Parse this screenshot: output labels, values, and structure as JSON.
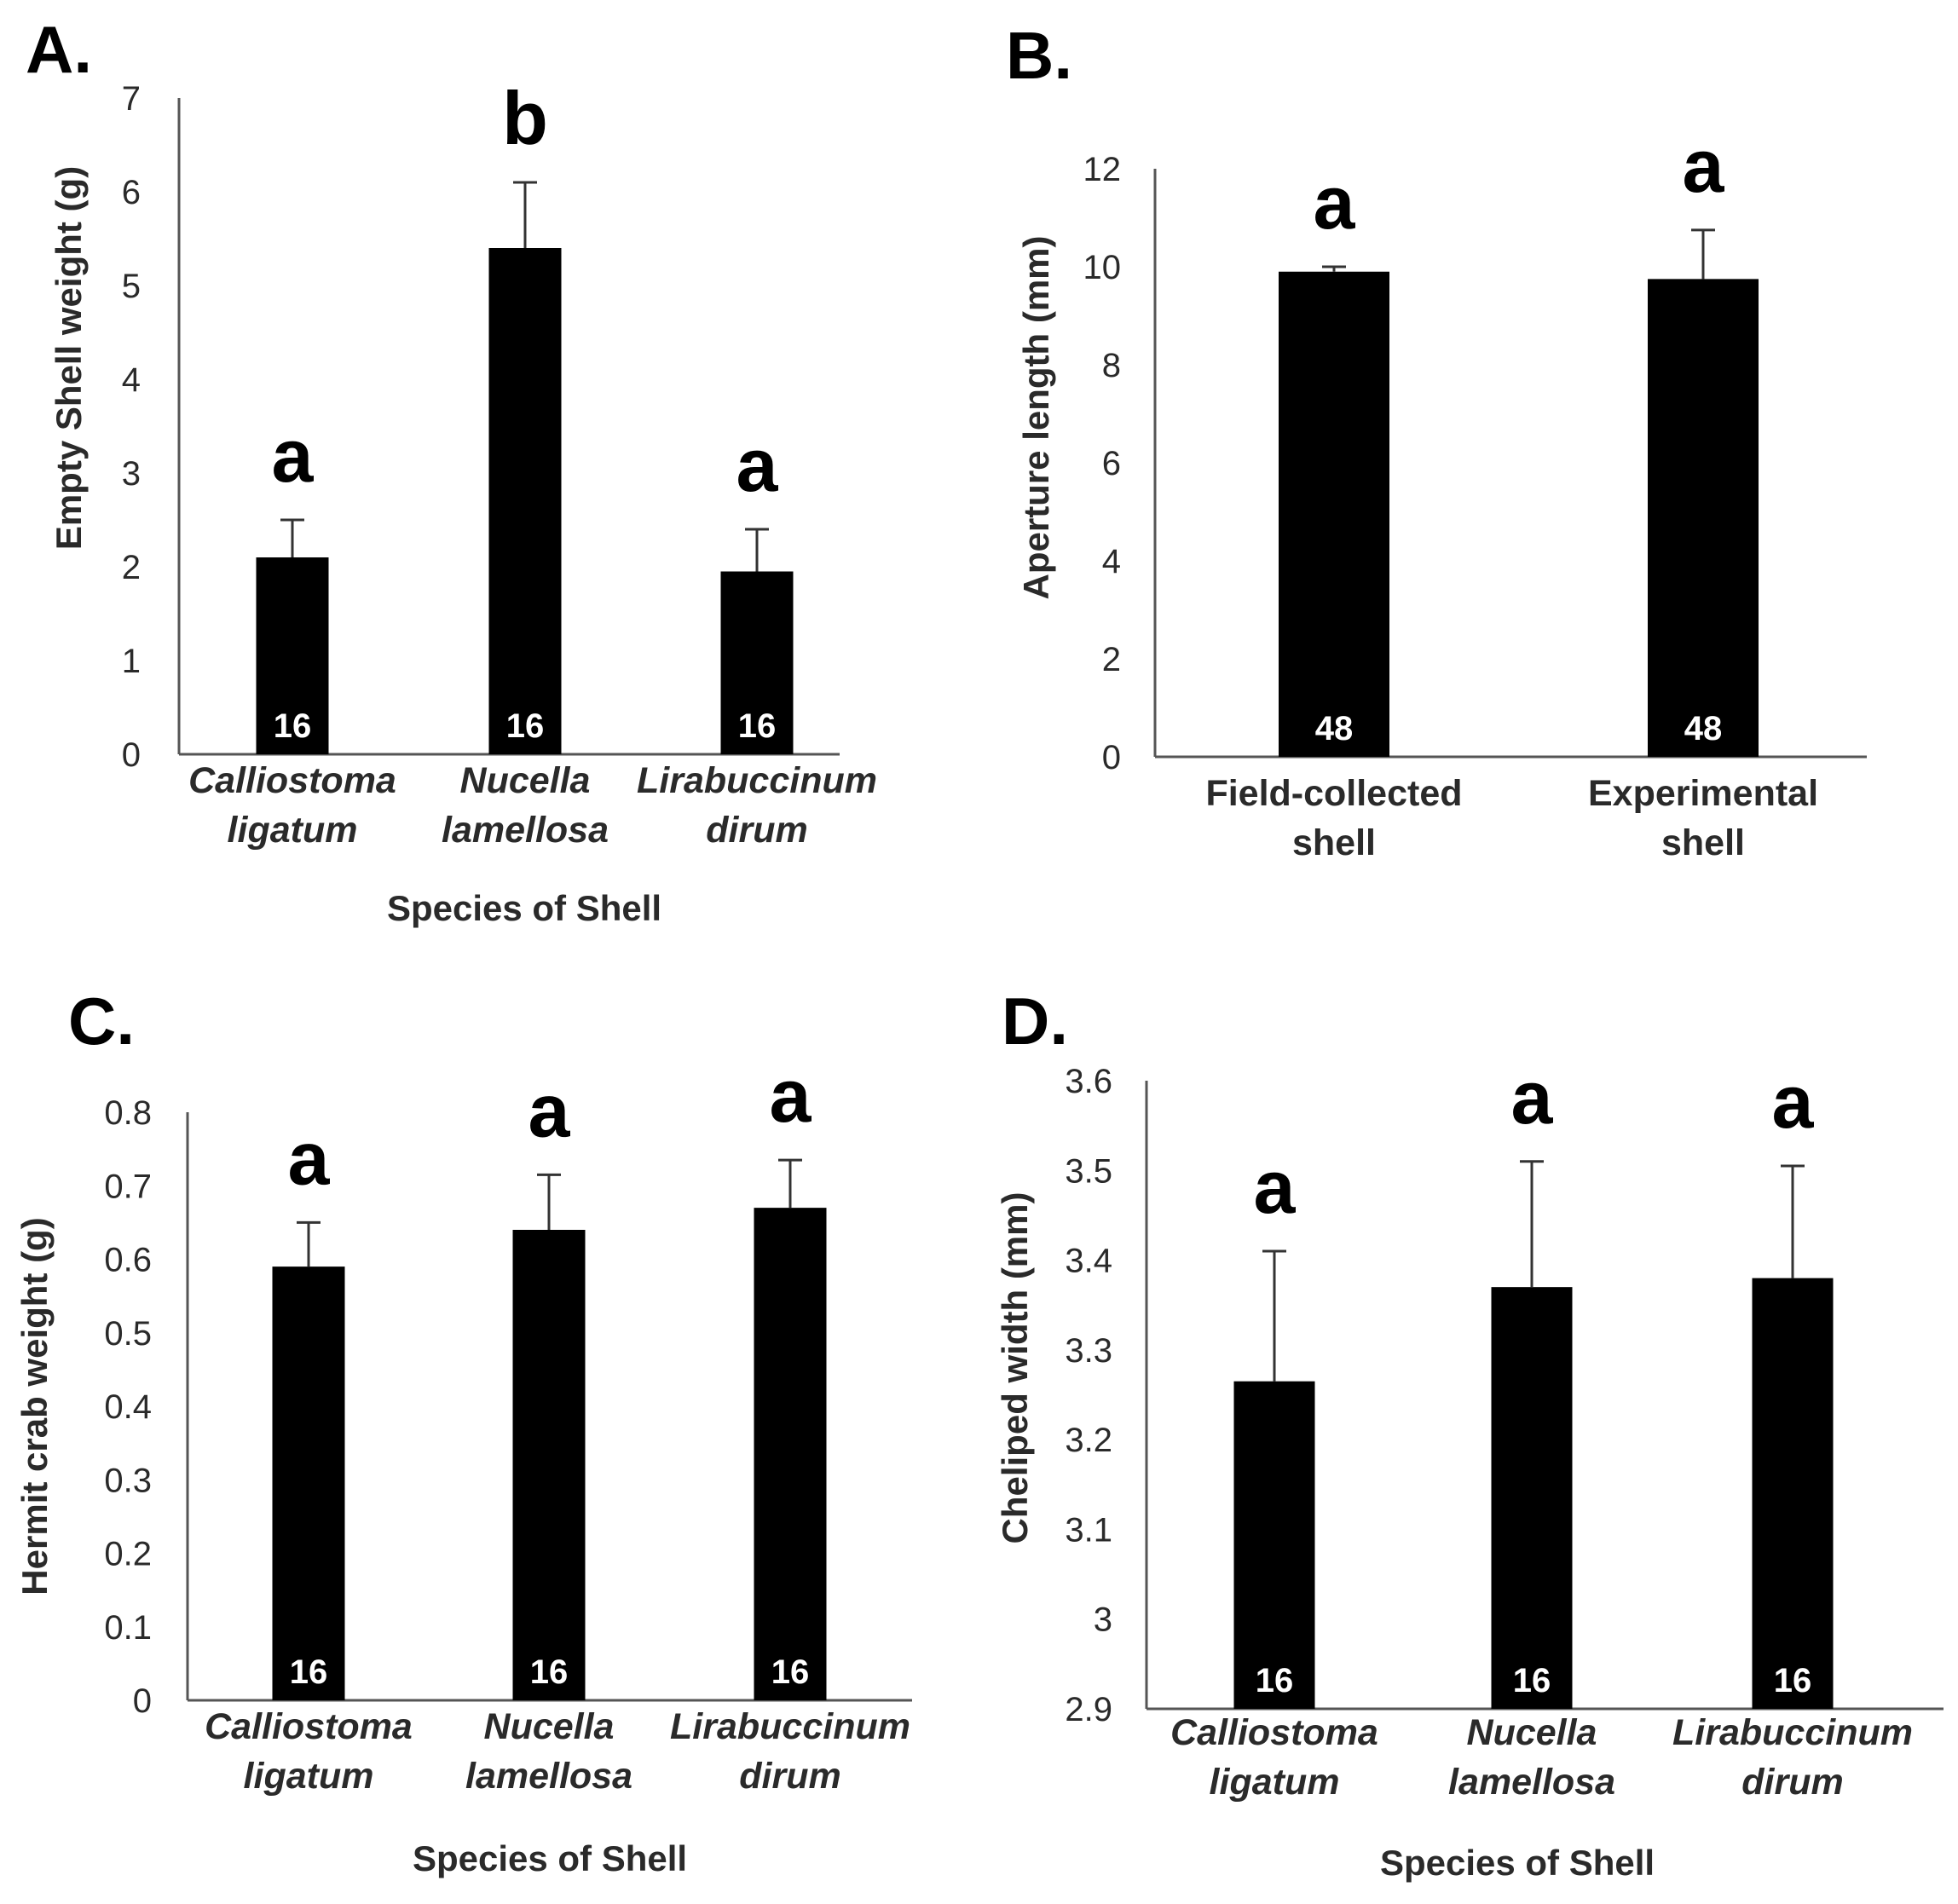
{
  "chart_data": [
    {
      "panel": "A.",
      "type": "bar",
      "categories": [
        [
          "Calliostoma",
          "ligatum"
        ],
        [
          "Nucella",
          "lamellosa"
        ],
        [
          "Lirabuccinum",
          "dirum"
        ]
      ],
      "category_italic": true,
      "values": [
        2.1,
        5.4,
        1.95
      ],
      "errors": [
        0.4,
        0.7,
        0.45
      ],
      "sig_letters": [
        "a",
        "b",
        "a"
      ],
      "n_labels": [
        "16",
        "16",
        "16"
      ],
      "ylabel": "Empty Shell weight  (g)",
      "xlabel": "Species of Shell",
      "ylim": [
        0,
        7
      ],
      "yticks": [
        "0",
        "1",
        "2",
        "3",
        "4",
        "5",
        "6",
        "7"
      ],
      "ytick_values": [
        0,
        1,
        2,
        3,
        4,
        5,
        6,
        7
      ]
    },
    {
      "panel": "B.",
      "type": "bar",
      "categories": [
        [
          "Field-collected",
          "shell"
        ],
        [
          "Experimental",
          "shell"
        ]
      ],
      "category_italic": false,
      "values": [
        9.9,
        9.75
      ],
      "errors": [
        0.1,
        1.0
      ],
      "sig_letters": [
        "a",
        "a"
      ],
      "n_labels": [
        "48",
        "48"
      ],
      "ylabel": "Aperture length (mm)",
      "xlabel": "",
      "ylim": [
        0,
        12
      ],
      "yticks": [
        "0",
        "2",
        "4",
        "6",
        "8",
        "10",
        "12"
      ],
      "ytick_values": [
        0,
        2,
        4,
        6,
        8,
        10,
        12
      ]
    },
    {
      "panel": "C.",
      "type": "bar",
      "categories": [
        [
          "Calliostoma",
          "ligatum"
        ],
        [
          "Nucella",
          "lamellosa"
        ],
        [
          "Lirabuccinum",
          "dirum"
        ]
      ],
      "category_italic": true,
      "values": [
        0.59,
        0.64,
        0.67
      ],
      "errors": [
        0.06,
        0.075,
        0.065
      ],
      "sig_letters": [
        "a",
        "a",
        "a"
      ],
      "n_labels": [
        "16",
        "16",
        "16"
      ],
      "ylabel": "Hermit crab weight (g)",
      "xlabel": "Species of Shell",
      "ylim": [
        0,
        0.8
      ],
      "yticks": [
        "0",
        "0.1",
        "0.2",
        "0.3",
        "0.4",
        "0.5",
        "0.6",
        "0.7",
        "0.8"
      ],
      "ytick_values": [
        0,
        0.1,
        0.2,
        0.3,
        0.4,
        0.5,
        0.6,
        0.7,
        0.8
      ]
    },
    {
      "panel": "D.",
      "type": "bar",
      "categories": [
        [
          "Calliostoma",
          "ligatum"
        ],
        [
          "Nucella",
          "lamellosa"
        ],
        [
          "Lirabuccinum",
          "dirum"
        ]
      ],
      "category_italic": true,
      "values": [
        3.265,
        3.37,
        3.38
      ],
      "errors": [
        0.145,
        0.14,
        0.125
      ],
      "sig_letters": [
        "a",
        "a",
        "a"
      ],
      "n_labels": [
        "16",
        "16",
        "16"
      ],
      "ylabel": "Cheliped width (mm)",
      "xlabel": "Species of Shell",
      "ylim": [
        2.9,
        3.6
      ],
      "yticks": [
        "2.9",
        "3",
        "3.1",
        "3.2",
        "3.3",
        "3.4",
        "3.5",
        "3.6"
      ],
      "ytick_values": [
        2.9,
        3.0,
        3.1,
        3.2,
        3.3,
        3.4,
        3.5,
        3.6
      ]
    }
  ]
}
